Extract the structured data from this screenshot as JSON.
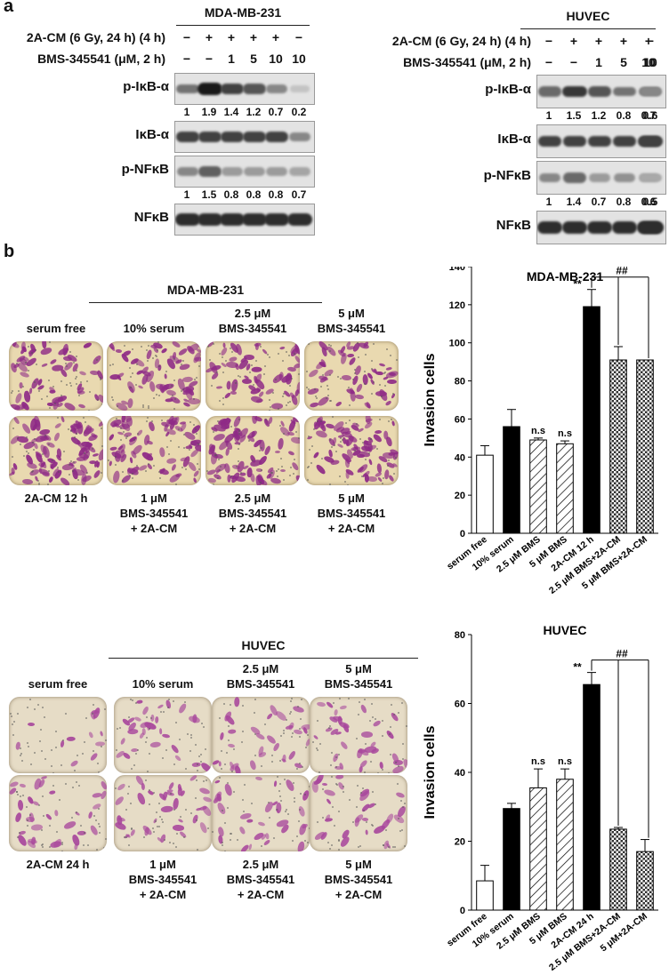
{
  "panel_a": {
    "letter": "a",
    "left": {
      "cell_line": "MDA-MB-231",
      "cond1_label": "2A-CM (6 Gy, 24 h) (4 h)",
      "cond1_values": [
        "−",
        "+",
        "+",
        "+",
        "+",
        "−"
      ],
      "cond2_label": "BMS-345541 (μM, 2 h)",
      "cond2_values": [
        "−",
        "−",
        "1",
        "5",
        "10",
        "10"
      ],
      "blots": [
        {
          "label": "p-IκB-α",
          "quant": [
            "1",
            "1.9",
            "1.4",
            "1.2",
            "0.7",
            "0.2"
          ],
          "intensity": [
            0.55,
            1.0,
            0.8,
            0.7,
            0.45,
            0.15
          ]
        },
        {
          "label": "IκB-α",
          "quant": [],
          "intensity": [
            0.8,
            0.8,
            0.8,
            0.8,
            0.8,
            0.45
          ]
        },
        {
          "label": "p-NFκB",
          "quant": [
            "1",
            "1.5",
            "0.8",
            "0.8",
            "0.8",
            "0.7"
          ],
          "intensity": [
            0.45,
            0.65,
            0.35,
            0.35,
            0.35,
            0.3
          ]
        },
        {
          "label": "NFκB",
          "quant": [],
          "intensity": [
            0.9,
            0.9,
            0.9,
            0.9,
            0.9,
            0.9
          ]
        }
      ]
    },
    "right": {
      "cell_line": "HUVEC",
      "cond1_label": "2A-CM (6 Gy, 24 h) (4 h)",
      "cond1_values": [
        "−",
        "+",
        "+",
        "+",
        "+",
        "−"
      ],
      "cond2_label": "BMS-345541 (μM, 2 h)",
      "cond2_values": [
        "−",
        "−",
        "1",
        "5",
        "10",
        "10"
      ],
      "blots": [
        {
          "label": "p-IκB-α",
          "quant": [
            "1",
            "1.5",
            "1.2",
            "0.8",
            "0.7",
            "0.6"
          ],
          "intensity": [
            0.6,
            0.85,
            0.7,
            0.55,
            0.5,
            0.45
          ]
        },
        {
          "label": "IκB-α",
          "quant": [],
          "intensity": [
            0.8,
            0.8,
            0.8,
            0.8,
            0.8,
            0.8
          ]
        },
        {
          "label": "p-NFκB",
          "quant": [
            "1",
            "1.4",
            "0.7",
            "0.8",
            "0.6",
            "0.5"
          ],
          "intensity": [
            0.45,
            0.6,
            0.35,
            0.4,
            0.3,
            0.28
          ]
        },
        {
          "label": "NFκB",
          "quant": [],
          "intensity": [
            0.9,
            0.9,
            0.9,
            0.9,
            0.9,
            0.9
          ]
        }
      ]
    }
  },
  "panel_b": {
    "letter": "b",
    "mda": {
      "cell_line": "MDA-MB-231",
      "top_labels": [
        "serum free",
        "10% serum",
        "2.5 μM\nBMS-345541",
        "5 μM\nBMS-345541"
      ],
      "bottom_labels": [
        "2A-CM 12 h",
        "1 μM\nBMS-345541\n+ 2A-CM",
        "2.5 μM\nBMS-345541\n+ 2A-CM",
        "5 μM\nBMS-345541\n+ 2A-CM"
      ],
      "stain_color": "#8e2a86",
      "bg_color": "#e9d9b0"
    },
    "huvec": {
      "cell_line": "HUVEC",
      "top_labels": [
        "serum free",
        "10% serum",
        "2.5 μM\nBMS-345541",
        "5 μM\nBMS-345541"
      ],
      "bottom_labels": [
        "2A-CM 24 h",
        "1 μM\nBMS-345541\n+ 2A-CM",
        "2.5 μM\nBMS-345541\n+ 2A-CM",
        "5 μM\nBMS-345541\n+ 2A-CM"
      ],
      "stain_color": "#a8479c",
      "bg_color": "#e6dcc6"
    }
  },
  "chart_data": [
    {
      "type": "bar",
      "title": "MDA-MB-231",
      "ylabel": "Invasion cells",
      "xlabel": "",
      "ylim": [
        0,
        140
      ],
      "yticks": [
        0,
        20,
        40,
        60,
        80,
        100,
        120,
        140
      ],
      "categories": [
        "serum free",
        "10% serum",
        "2.5 μM BMS",
        "5 μM BMS",
        "2A-CM 12 h",
        "2.5 μM BMS+2A-CM",
        "5 μM BMS+2A-CM"
      ],
      "values": [
        41,
        56,
        49,
        47,
        119,
        91,
        91
      ],
      "errors": [
        5,
        9,
        1,
        1.5,
        9,
        7,
        0
      ],
      "fills": [
        "white",
        "black",
        "hatch",
        "hatch",
        "black",
        "checker",
        "checker"
      ],
      "annotations": [
        {
          "category": "2.5 μM BMS",
          "text": "n.s"
        },
        {
          "category": "5 μM BMS",
          "text": "n.s"
        },
        {
          "category": "2A-CM 12 h",
          "text": "**"
        }
      ],
      "bracket_text": "##"
    },
    {
      "type": "bar",
      "title": "HUVEC",
      "ylabel": "Invasion cells",
      "xlabel": "",
      "ylim": [
        0,
        80
      ],
      "yticks": [
        0,
        20,
        40,
        60,
        80
      ],
      "categories": [
        "serum free",
        "10% serum",
        "2.5 μM BMS",
        "5 μM BMS",
        "2A-CM 24 h",
        "2.5 μM BMS+2A-CM",
        "5 μM+2A-CM"
      ],
      "values": [
        8.5,
        29.5,
        35.5,
        38,
        65.5,
        23.5,
        17
      ],
      "errors": [
        4.5,
        1.5,
        5.5,
        3,
        3.5,
        0.5,
        3.5
      ],
      "fills": [
        "white",
        "black",
        "hatch",
        "hatch",
        "black",
        "checker",
        "checker"
      ],
      "annotations": [
        {
          "category": "2.5 μM BMS",
          "text": "n.s"
        },
        {
          "category": "5 μM BMS",
          "text": "n.s"
        },
        {
          "category": "2A-CM 24 h",
          "text": "**"
        }
      ],
      "bracket_text": "##"
    }
  ]
}
